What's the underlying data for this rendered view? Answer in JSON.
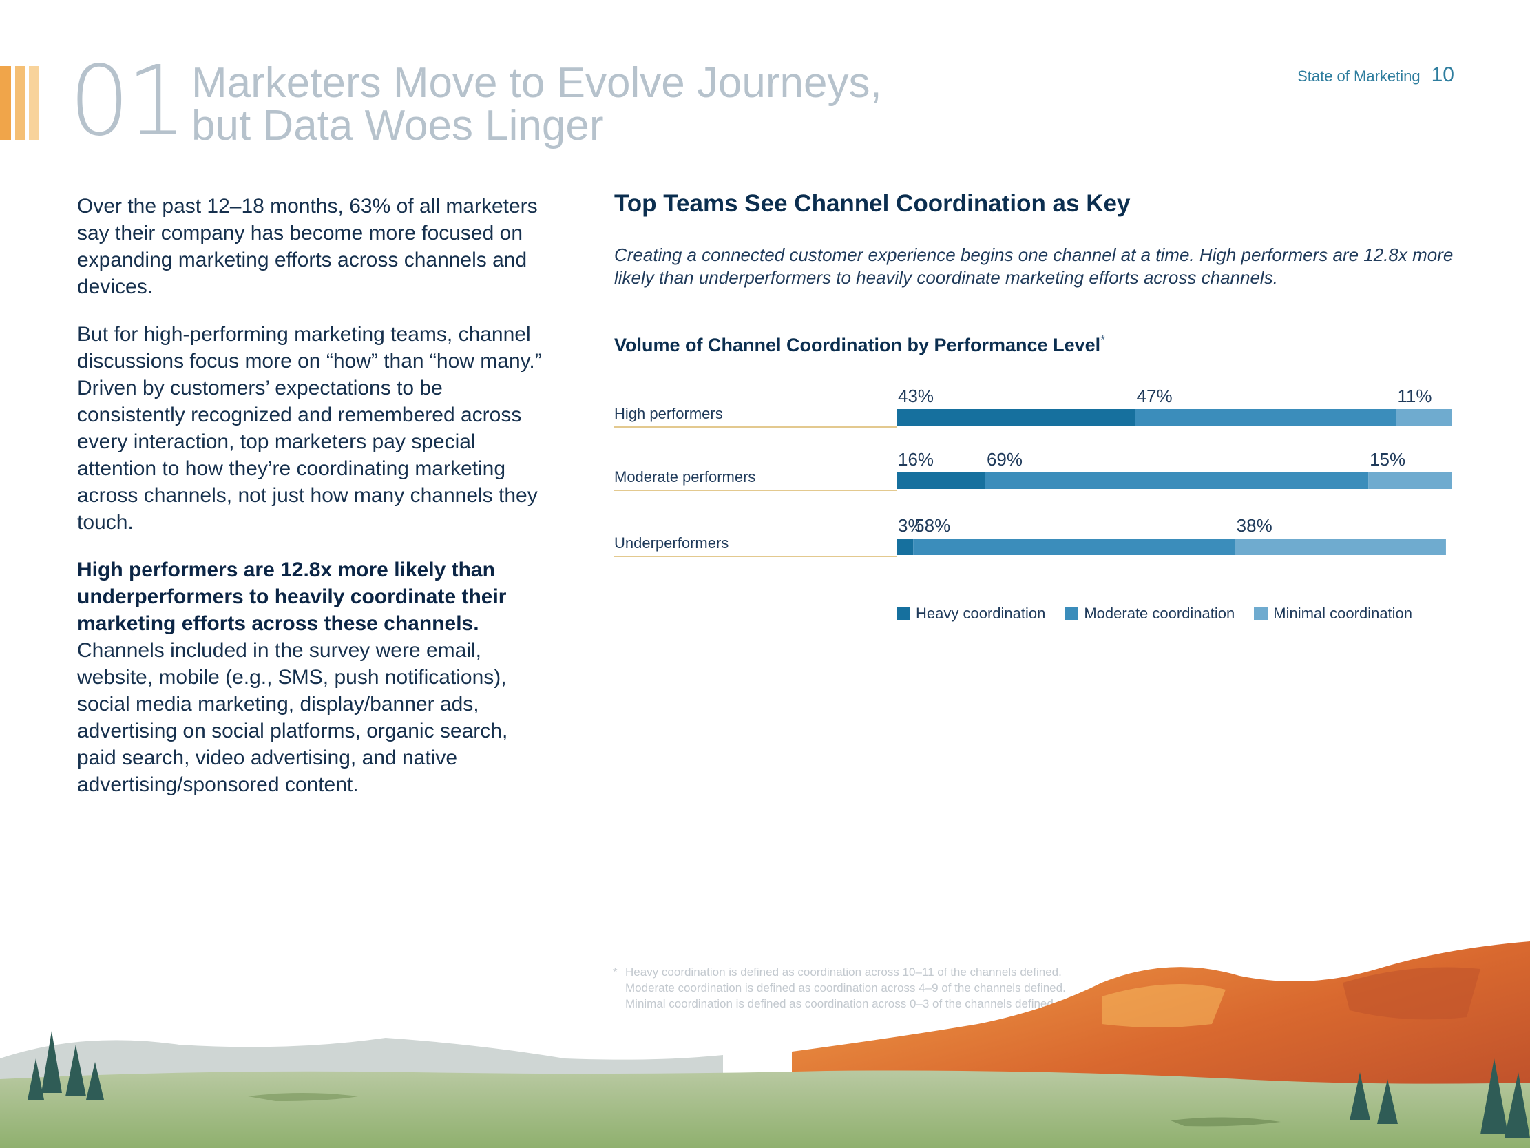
{
  "header": {
    "section_number": "01",
    "title_line1": "Marketers Move to Evolve Journeys,",
    "title_line2": "but Data Woes Linger",
    "report_name": "State of Marketing",
    "page_number": "10"
  },
  "body": {
    "para1": "Over the past 12–18 months, 63% of all marketers say their company has become more focused on expanding marketing efforts across channels and devices.",
    "para2": "But for high-performing marketing teams, channel discussions focus more on “how” than “how many.” Driven by customers’ expectations to be consistently recognized and remembered across every interaction, top marketers pay special attention to how they’re coordinating marketing across channels, not just how many channels they touch.",
    "para3_bold": "High performers are 12.8x more likely than underperformers to heavily coordinate their marketing efforts across these channels.",
    "para3_rest": "Channels included in the survey were email, website, mobile (e.g., SMS, push notifications), social media marketing, display/banner ads, advertising on social platforms, organic search, paid search, video advertising, and native advertising/sponsored content."
  },
  "section": {
    "heading": "Top Teams See Channel Coordination as Key",
    "intro": "Creating a connected customer experience begins one channel at a time. High performers are 12.8x more likely than underperformers to heavily coordinate marketing efforts across channels."
  },
  "chart_data": {
    "type": "bar",
    "orientation": "horizontal",
    "stacked": true,
    "title": "Volume of Channel Coordination by Performance Level",
    "title_marker": "*",
    "categories": [
      "High performers",
      "Moderate performers",
      "Underperformers"
    ],
    "series": [
      {
        "name": "Heavy coordination",
        "values": [
          43,
          16,
          3
        ],
        "labels": [
          "43%",
          "16%",
          "3%"
        ],
        "color": "#16709e"
      },
      {
        "name": "Moderate coordination",
        "values": [
          47,
          69,
          58
        ],
        "labels": [
          "47%",
          "69%",
          "58%"
        ],
        "color": "#3b8dbb"
      },
      {
        "name": "Minimal coordination",
        "values": [
          11,
          15,
          38
        ],
        "labels": [
          "11%",
          "15%",
          "38%"
        ],
        "color": "#6fabcf"
      }
    ],
    "xlim": [
      0,
      100
    ],
    "grid": false,
    "legend_position": "bottom"
  },
  "footnotes": [
    "Heavy coordination is defined as coordination across 10–11 of the channels defined.",
    "Moderate coordination is defined as coordination across 4–9 of the channels defined.",
    "Minimal coordination is defined as coordination across 0–3 of the channels defined."
  ],
  "footnote_marker": "*",
  "colors": {
    "title_gray": "#b6c2cc",
    "accent_teal": "#2e7d9e",
    "stripe_orange": [
      "#f0a54a",
      "#f5bf74",
      "#f8d39b"
    ],
    "rule_gold": "#e3c98f"
  }
}
